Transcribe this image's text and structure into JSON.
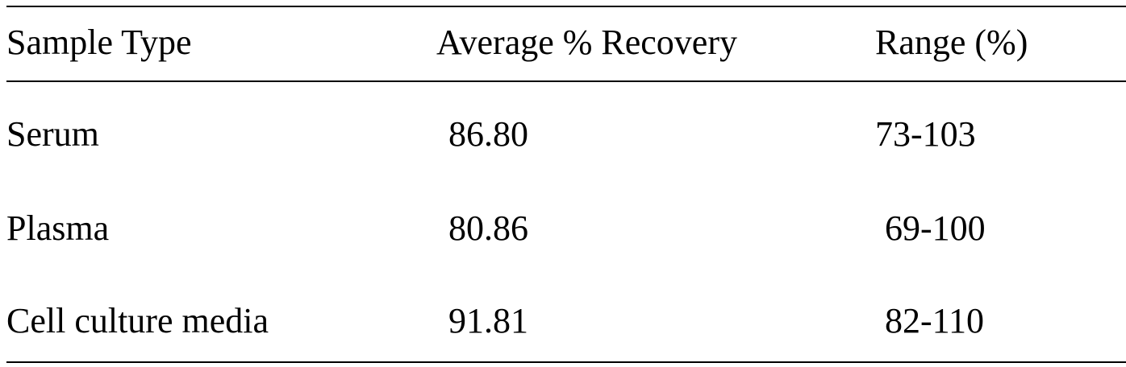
{
  "table": {
    "header": [
      "Sample Type",
      "Average % Recovery",
      "Range (%)"
    ],
    "rows": [
      [
        "Serum",
        "86.80",
        "73-103"
      ],
      [
        "Plasma",
        "80.86",
        "69-100"
      ],
      [
        "Cell culture media",
        "91.81",
        "82-110"
      ]
    ]
  }
}
